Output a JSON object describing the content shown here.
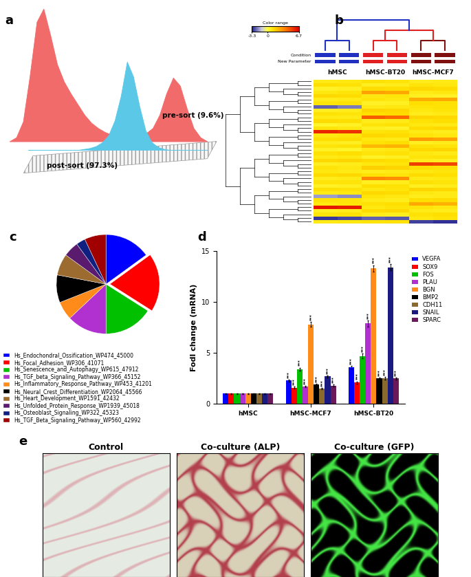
{
  "chart_data": [
    {
      "panel_label": "a",
      "type": "area",
      "tick_labels": false,
      "x": [
        0,
        1,
        2,
        3,
        4,
        5,
        6,
        7,
        8,
        9,
        10,
        11,
        12,
        13,
        14,
        15,
        16,
        17,
        18,
        19,
        20,
        21,
        22,
        23,
        24,
        25,
        26,
        27,
        28,
        29
      ],
      "xlim": [
        0,
        29
      ],
      "ylim": [
        0,
        100
      ],
      "series": [
        {
          "name": "pre-sort (9.6%)",
          "color": "#f26b6b",
          "values": [
            0,
            3,
            15,
            50,
            90,
            100,
            80,
            58,
            45,
            36,
            28,
            20,
            14,
            10,
            7,
            5,
            4,
            3,
            3,
            4,
            6,
            10,
            20,
            36,
            48,
            42,
            25,
            10,
            3,
            0
          ]
        },
        {
          "name": "post-sort (97.3%)",
          "color": "#5bc8e8",
          "values": [
            0,
            0,
            0,
            0,
            0,
            0,
            0,
            0,
            0,
            1,
            2,
            4,
            8,
            15,
            30,
            55,
            90,
            75,
            45,
            20,
            8,
            3,
            1,
            0,
            0,
            0,
            0,
            0,
            0,
            0
          ]
        }
      ]
    },
    {
      "panel_label": "b",
      "type": "heatmap",
      "annotations": [
        "Condition",
        "New Parameter"
      ],
      "colorbar_label": "Color range",
      "colorbar_range": [
        -3.3,
        6.7
      ],
      "colorbar_ticks": [
        -3.3,
        0,
        6.7
      ],
      "groups": [
        {
          "name": "hMSC",
          "color": "#2030c0",
          "columns": 2
        },
        {
          "name": "hMSC-BT20",
          "color": "#e02020",
          "columns": 2
        },
        {
          "name": "hMSC-MCF7",
          "color": "#801010",
          "columns": 2
        }
      ],
      "cells": [
        [
          0.8,
          0.9,
          1.1,
          1.0,
          0.7,
          0.8
        ],
        [
          1.2,
          1.1,
          0.6,
          0.7,
          1.0,
          0.9
        ],
        [
          0.5,
          0.6,
          1.3,
          1.2,
          1.4,
          1.3
        ],
        [
          0.9,
          1.0,
          2.8,
          2.6,
          0.8,
          0.9
        ],
        [
          1.4,
          1.3,
          0.9,
          1.0,
          0.6,
          0.5
        ],
        [
          0.7,
          0.8,
          1.0,
          0.9,
          2.5,
          2.7
        ],
        [
          1.0,
          1.1,
          0.5,
          0.6,
          1.2,
          1.1
        ],
        [
          -2.5,
          -2.2,
          0.8,
          0.9,
          1.0,
          1.1
        ],
        [
          0.6,
          0.7,
          1.5,
          1.4,
          0.9,
          1.0
        ],
        [
          1.1,
          1.0,
          1.2,
          1.3,
          0.7,
          0.8
        ],
        [
          0.8,
          0.8,
          4.5,
          4.2,
          1.5,
          1.4
        ],
        [
          1.3,
          1.2,
          0.7,
          0.8,
          1.1,
          1.2
        ],
        [
          0.4,
          0.5,
          1.0,
          1.1,
          0.9,
          0.8
        ],
        [
          1.0,
          0.9,
          0.6,
          0.5,
          1.3,
          1.4
        ],
        [
          5.8,
          5.5,
          1.0,
          1.1,
          0.8,
          0.7
        ],
        [
          0.9,
          1.0,
          1.4,
          1.3,
          1.0,
          0.9
        ],
        [
          1.2,
          1.3,
          0.9,
          0.8,
          3.0,
          2.8
        ],
        [
          0.7,
          0.6,
          1.1,
          1.2,
          0.6,
          0.7
        ],
        [
          1.0,
          1.1,
          2.2,
          2.4,
          1.1,
          1.0
        ],
        [
          0.5,
          0.4,
          0.8,
          0.9,
          1.4,
          1.5
        ],
        [
          1.1,
          1.2,
          1.0,
          1.1,
          0.9,
          0.8
        ],
        [
          0.8,
          0.9,
          0.5,
          0.6,
          1.0,
          1.1
        ],
        [
          1.4,
          1.5,
          1.3,
          1.2,
          0.7,
          0.6
        ],
        [
          0.6,
          0.7,
          0.9,
          1.0,
          5.2,
          5.0
        ],
        [
          1.0,
          0.9,
          1.6,
          1.5,
          1.2,
          1.1
        ],
        [
          0.9,
          0.8,
          0.7,
          0.8,
          0.9,
          1.0
        ],
        [
          1.3,
          1.4,
          1.1,
          1.0,
          1.3,
          1.2
        ],
        [
          0.7,
          0.8,
          3.5,
          3.3,
          0.8,
          0.9
        ],
        [
          1.0,
          1.0,
          0.6,
          0.7,
          1.1,
          1.0
        ],
        [
          0.5,
          0.6,
          1.2,
          1.1,
          0.6,
          0.7
        ],
        [
          1.2,
          1.1,
          0.9,
          1.0,
          1.5,
          1.4
        ],
        [
          0.8,
          0.9,
          1.4,
          1.3,
          0.9,
          0.8
        ],
        [
          -1.8,
          -2.0,
          1.0,
          0.9,
          0.7,
          0.8
        ],
        [
          1.1,
          1.0,
          0.8,
          0.7,
          1.2,
          1.3
        ],
        [
          0.9,
          1.0,
          1.1,
          1.2,
          2.6,
          2.4
        ],
        [
          6.2,
          6.0,
          0.9,
          1.0,
          1.0,
          0.9
        ],
        [
          0.6,
          0.7,
          1.3,
          1.4,
          0.8,
          0.7
        ],
        [
          1.0,
          1.1,
          0.7,
          0.6,
          1.1,
          1.2
        ],
        [
          -3.0,
          -2.8,
          -2.5,
          -2.6,
          0.9,
          1.0
        ],
        [
          0.8,
          0.9,
          1.0,
          1.1,
          -2.9,
          -3.1
        ]
      ]
    },
    {
      "panel_label": "c",
      "type": "pie",
      "legend": "below",
      "categories": [
        "Hs_Endochondral_Ossification_WP474_45000",
        "Hs_Focal_Adhesion_WP306_41071",
        "Hs_Senescence_and_Autophagy_WP615_47912",
        "Hs_TGF_beta_Signaling_Pathway_WP366_45152",
        "Hs_Inflammatory_Response_Pathway_WP453_41201",
        "Hs_Neural_Crest_Differentiation_WP2064_45566",
        "Hs_Heart_Development_WP1591_42432",
        "Hs_Unfolded_Protein_Response_WP1939_45018",
        "Hs_Osteoblast_Signaling_WP322_45323",
        "Hs_TGF_Beta_Signaling_Pathway_WP560_42992"
      ],
      "values": [
        15,
        19,
        16,
        13,
        6,
        9,
        7,
        5,
        3,
        7
      ],
      "colors": [
        "#0000ff",
        "#ff0000",
        "#00c000",
        "#b030d0",
        "#ff8c1a",
        "#000000",
        "#9c6b30",
        "#5a1a6e",
        "#102080",
        "#a00000"
      ]
    },
    {
      "panel_label": "d",
      "type": "bar",
      "legend": "right",
      "y_label": "Fodl change (mRNA)",
      "categories": [
        "hMSC",
        "hMSC-MCF7",
        "hMSC-BT20"
      ],
      "ylim": [
        0,
        15
      ],
      "yticks": [
        0,
        5,
        10,
        15
      ],
      "series": [
        {
          "name": "VEGFA",
          "color": "#0000ff",
          "values": [
            1,
            2.3,
            3.6
          ],
          "errors": [
            0.05,
            0.1,
            0.12
          ],
          "significance": [
            null,
            "***",
            "***"
          ]
        },
        {
          "name": "SOX9",
          "color": "#ff0000",
          "values": [
            1,
            1.6,
            2.1
          ],
          "errors": [
            0.05,
            0.08,
            0.1
          ],
          "significance": [
            null,
            "***",
            "***"
          ]
        },
        {
          "name": "FOS",
          "color": "#00c000",
          "values": [
            1,
            3.4,
            4.7
          ],
          "errors": [
            0.05,
            0.15,
            0.25
          ],
          "significance": [
            null,
            "***",
            "***"
          ]
        },
        {
          "name": "PLAU",
          "color": "#b030d0",
          "values": [
            1,
            1.7,
            7.9
          ],
          "errors": [
            0.05,
            0.08,
            0.3
          ],
          "significance": [
            null,
            "***",
            "***"
          ]
        },
        {
          "name": "BGN",
          "color": "#ff8c1a",
          "values": [
            1,
            7.8,
            13.3
          ],
          "errors": [
            0.05,
            0.25,
            0.3
          ],
          "significance": [
            null,
            "***",
            "***"
          ]
        },
        {
          "name": "BMP2",
          "color": "#000000",
          "values": [
            1,
            1.9,
            2.5
          ],
          "errors": [
            0.05,
            0.08,
            0.1
          ],
          "significance": [
            null,
            "***",
            "***"
          ]
        },
        {
          "name": "CDH11",
          "color": "#8b6a2e",
          "values": [
            1,
            1.5,
            2.5
          ],
          "errors": [
            0.05,
            0.08,
            0.12
          ],
          "significance": [
            null,
            "***",
            "***"
          ]
        },
        {
          "name": "SNAIL",
          "color": "#1a1a80",
          "values": [
            1,
            2.7,
            13.4
          ],
          "errors": [
            0.05,
            0.1,
            0.3
          ],
          "significance": [
            null,
            "***",
            "***"
          ]
        },
        {
          "name": "SPARC",
          "color": "#6a1a5a",
          "values": [
            1,
            1.8,
            2.5
          ],
          "errors": [
            0.05,
            0.08,
            0.1
          ],
          "significance": [
            null,
            "***",
            "***"
          ]
        }
      ]
    },
    {
      "panel_label": "e",
      "type": "image",
      "titles": [
        "Control",
        "Co-culture (ALP)",
        "Co-culture (GFP)"
      ]
    }
  ]
}
